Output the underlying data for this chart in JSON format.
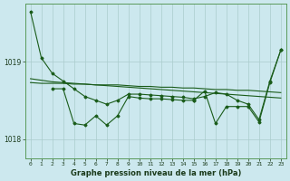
{
  "title": "Graphe pression niveau de la mer (hPa)",
  "background_color": "#cce8ee",
  "grid_color": "#aacccc",
  "line_color": "#1a5c1a",
  "x_min": -0.5,
  "x_max": 23.5,
  "y_min": 1017.75,
  "y_max": 1019.75,
  "yticks": [
    1018,
    1019
  ],
  "xticks": [
    0,
    1,
    2,
    3,
    4,
    5,
    6,
    7,
    8,
    9,
    10,
    11,
    12,
    13,
    14,
    15,
    16,
    17,
    18,
    19,
    20,
    21,
    22,
    23
  ],
  "series1_x": [
    0,
    1,
    2,
    3,
    4,
    5,
    6,
    7,
    8,
    9,
    10,
    11,
    12,
    13,
    14,
    15,
    16,
    17,
    18,
    19,
    20,
    21,
    22,
    23
  ],
  "series1_y": [
    1019.65,
    1019.05,
    1018.85,
    1018.75,
    1018.65,
    1018.55,
    1018.5,
    1018.45,
    1018.5,
    1018.58,
    1018.58,
    1018.57,
    1018.56,
    1018.55,
    1018.54,
    1018.52,
    1018.55,
    1018.6,
    1018.58,
    1018.5,
    1018.45,
    1018.25,
    1018.75,
    1019.15
  ],
  "series2_x": [
    0,
    1,
    2,
    3,
    4,
    5,
    6,
    7,
    8,
    9,
    10,
    11,
    12,
    13,
    14,
    15,
    16,
    17,
    18,
    19,
    20,
    21,
    22,
    23
  ],
  "series2_y": [
    1018.78,
    1018.76,
    1018.74,
    1018.73,
    1018.72,
    1018.71,
    1018.7,
    1018.69,
    1018.68,
    1018.67,
    1018.66,
    1018.65,
    1018.64,
    1018.63,
    1018.62,
    1018.61,
    1018.6,
    1018.59,
    1018.58,
    1018.57,
    1018.56,
    1018.55,
    1018.54,
    1018.53
  ],
  "series3_x": [
    0,
    1,
    2,
    3,
    4,
    5,
    6,
    7,
    8,
    9,
    10,
    11,
    12,
    13,
    14,
    15,
    16,
    17,
    18,
    19,
    20,
    21,
    22,
    23
  ],
  "series3_y": [
    1018.73,
    1018.72,
    1018.72,
    1018.72,
    1018.71,
    1018.71,
    1018.7,
    1018.7,
    1018.7,
    1018.69,
    1018.68,
    1018.68,
    1018.67,
    1018.67,
    1018.66,
    1018.66,
    1018.65,
    1018.64,
    1018.64,
    1018.63,
    1018.63,
    1018.62,
    1018.61,
    1018.6
  ],
  "series4_x": [
    2,
    3,
    4,
    5,
    6,
    7,
    8,
    9,
    10,
    11,
    12,
    13,
    14,
    15
  ],
  "series4_y": [
    1018.65,
    1018.65,
    1018.2,
    1018.18,
    1018.3,
    1018.18,
    1018.3,
    1018.55,
    1018.53,
    1018.52,
    1018.52,
    1018.51,
    1018.5,
    1018.5
  ],
  "series5_x": [
    15,
    16,
    17,
    18,
    19,
    20,
    21,
    22,
    23
  ],
  "series5_y": [
    1018.5,
    1018.62,
    1018.2,
    1018.42,
    1018.42,
    1018.42,
    1018.22,
    1018.73,
    1019.15
  ]
}
